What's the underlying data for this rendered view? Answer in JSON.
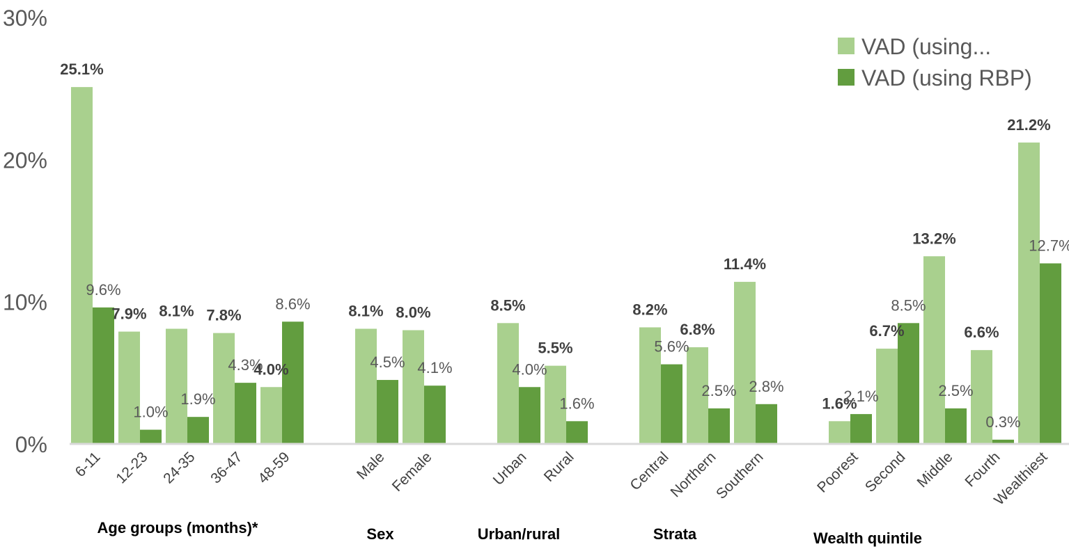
{
  "chart_data": {
    "type": "bar",
    "title": "",
    "xlabel": "",
    "ylabel": "",
    "ylim": [
      0,
      30
    ],
    "yticks": [
      "0%",
      "10%",
      "20%",
      "30%"
    ],
    "legend_position": "top-right",
    "colors": {
      "series_a": "#a9d08e",
      "series_b": "#629d3f",
      "axis": "#d9d9d9"
    },
    "categories": [
      "6-11",
      "12-23",
      "24-35",
      "36-47",
      "48-59",
      "Male",
      "Female",
      "Urban",
      "Rural",
      "Central",
      "Northern",
      "Southern",
      "Poorest",
      "Second",
      "Middle",
      "Fourth",
      "Wealthiest"
    ],
    "groups": [
      {
        "name": "Age groups (months)*",
        "categories": [
          "6-11",
          "12-23",
          "24-35",
          "36-47",
          "48-59"
        ]
      },
      {
        "name": "Sex",
        "categories": [
          "Male",
          "Female"
        ]
      },
      {
        "name": "Urban/rural",
        "categories": [
          "Urban",
          "Rural"
        ]
      },
      {
        "name": "Strata",
        "categories": [
          "Central",
          "Northern",
          "Southern"
        ]
      },
      {
        "name": "Wealth quintile",
        "categories": [
          "Poorest",
          "Second",
          "Middle",
          "Fourth",
          "Wealthiest"
        ]
      }
    ],
    "series": [
      {
        "name": "VAD (using...",
        "values": [
          25.1,
          7.9,
          8.1,
          7.8,
          4.0,
          8.1,
          8.0,
          8.5,
          5.5,
          8.2,
          6.8,
          11.4,
          1.6,
          6.7,
          13.2,
          6.6,
          21.2
        ],
        "labels": [
          "25.1%",
          "7.9%",
          "8.1%",
          "7.8%",
          "4.0%",
          "8.1%",
          "8.0%",
          "8.5%",
          "5.5%",
          "8.2%",
          "6.8%",
          "11.4%",
          "1.6%",
          "6.7%",
          "13.2%",
          "6.6%",
          "21.2%"
        ]
      },
      {
        "name": "VAD (using RBP)",
        "values": [
          9.6,
          1.0,
          1.9,
          4.3,
          8.6,
          4.5,
          4.1,
          4.0,
          1.6,
          5.6,
          2.5,
          2.8,
          2.1,
          8.5,
          2.5,
          0.3,
          12.7
        ],
        "labels": [
          "9.6%",
          "1.0%",
          "1.9%",
          "4.3%",
          "8.6%",
          "4.5%",
          "4.1%",
          "4.0%",
          "1.6%",
          "5.6%",
          "2.5%",
          "2.8%",
          "2.1%",
          "8.5%",
          "2.5%",
          "0.3%",
          "12.7%"
        ]
      }
    ]
  }
}
